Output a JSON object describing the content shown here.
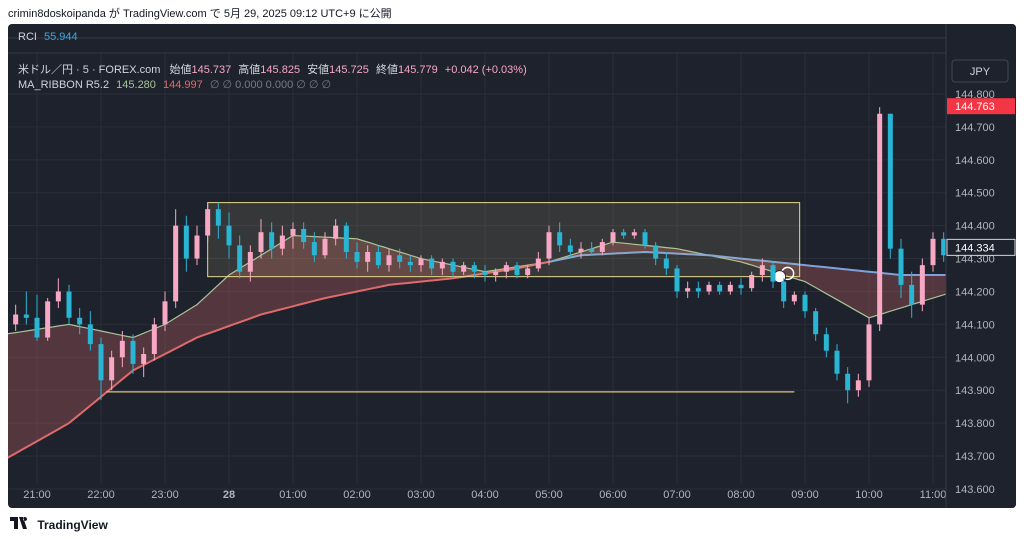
{
  "header": {
    "text": "crimin8doskoipanda が TradingView.com で 5月 29, 2025 09:12 UTC+9 に公開"
  },
  "footer": {
    "brand": "TradingView",
    "logo": "tradingview-logo"
  },
  "chart": {
    "rci_label": "RCI",
    "rci_value": "55.944",
    "symbol": "米ドル／円 · 5 · FOREX.com",
    "open_label": "始値",
    "open_value": "145.737",
    "high_label": "高値",
    "high_value": "145.825",
    "low_label": "安値",
    "low_value": "145.725",
    "close_label": "終値",
    "close_value": "145.779",
    "change": "+0.042 (+0.03%)",
    "ribbon_label": "MA_RIBBON R5.2",
    "ribbon_v1": "145.280",
    "ribbon_v2": "144.997",
    "ribbon_rest": "∅ ∅ 0.000 0.000 ∅ ∅ ∅",
    "currency": "JPY",
    "last_price": "144.763",
    "cursor_price": "144.334"
  },
  "colors": {
    "background": "#1e222d",
    "up": "#f7a8c4",
    "down": "#29b6d4",
    "rci": "#3ea6e0",
    "fast_ma": "#a7c497",
    "slow_ma": "#e06a6a",
    "ribbon_blue": "#7fa0d8",
    "box_border": "#e8d98b",
    "hline": "#e0c07a",
    "last_price_bg": "#f23645"
  },
  "chart_data": {
    "type": "candlestick",
    "y_ticks": [
      "144.800",
      "144.700",
      "144.600",
      "144.500",
      "144.400",
      "144.300",
      "144.200",
      "144.100",
      "144.000",
      "143.900",
      "143.800",
      "143.700",
      "143.600"
    ],
    "x_ticks": [
      "21:00",
      "22:00",
      "23:00",
      "28",
      "01:00",
      "02:00",
      "03:00",
      "04:00",
      "05:00",
      "06:00",
      "07:00",
      "08:00",
      "09:00",
      "10:00",
      "11:00"
    ],
    "ylim": [
      143.6,
      144.8
    ],
    "annotations": {
      "box": {
        "start": "23:40",
        "end": "08:55",
        "top": 144.47,
        "bottom": 144.245
      },
      "hline": {
        "start": "22:05",
        "end": "08:50",
        "price": 143.895
      }
    },
    "fast_ma": [
      {
        "t": "20:30",
        "p": 144.07
      },
      {
        "t": "21:30",
        "p": 144.1
      },
      {
        "t": "22:30",
        "p": 144.06
      },
      {
        "t": "23:00",
        "p": 144.1
      },
      {
        "t": "23:30",
        "p": 144.16
      },
      {
        "t": "00:00",
        "p": 144.25
      },
      {
        "t": "01:00",
        "p": 144.37
      },
      {
        "t": "02:00",
        "p": 144.36
      },
      {
        "t": "03:00",
        "p": 144.3
      },
      {
        "t": "04:00",
        "p": 144.26
      },
      {
        "t": "05:00",
        "p": 144.29
      },
      {
        "t": "06:00",
        "p": 144.35
      },
      {
        "t": "07:00",
        "p": 144.33
      },
      {
        "t": "08:00",
        "p": 144.29
      },
      {
        "t": "09:00",
        "p": 144.23
      },
      {
        "t": "10:00",
        "p": 144.12
      },
      {
        "t": "11:00",
        "p": 144.18
      },
      {
        "t": "11:20",
        "p": 144.2
      }
    ],
    "slow_ma": [
      {
        "t": "20:30",
        "p": 143.69
      },
      {
        "t": "21:30",
        "p": 143.8
      },
      {
        "t": "22:30",
        "p": 143.96
      },
      {
        "t": "23:30",
        "p": 144.06
      },
      {
        "t": "00:30",
        "p": 144.13
      },
      {
        "t": "01:30",
        "p": 144.18
      },
      {
        "t": "02:30",
        "p": 144.22
      },
      {
        "t": "03:30",
        "p": 144.24
      },
      {
        "t": "04:30",
        "p": 144.27
      },
      {
        "t": "05:30",
        "p": 144.31
      },
      {
        "t": "06:30",
        "p": 144.32
      },
      {
        "t": "07:30",
        "p": 144.31
      },
      {
        "t": "08:30",
        "p": 144.29
      },
      {
        "t": "09:30",
        "p": 144.27
      },
      {
        "t": "10:30",
        "p": 144.25
      },
      {
        "t": "11:20",
        "p": 144.25
      }
    ],
    "candles": [
      {
        "t": "20:30",
        "o": 144.07,
        "h": 144.12,
        "l": 144.04,
        "c": 144.1
      },
      {
        "t": "20:40",
        "o": 144.1,
        "h": 144.16,
        "l": 144.08,
        "c": 144.13
      },
      {
        "t": "20:50",
        "o": 144.13,
        "h": 144.2,
        "l": 144.1,
        "c": 144.12
      },
      {
        "t": "21:00",
        "o": 144.12,
        "h": 144.19,
        "l": 144.05,
        "c": 144.06
      },
      {
        "t": "21:10",
        "o": 144.06,
        "h": 144.18,
        "l": 144.05,
        "c": 144.17
      },
      {
        "t": "21:20",
        "o": 144.17,
        "h": 144.24,
        "l": 144.15,
        "c": 144.2
      },
      {
        "t": "21:30",
        "o": 144.2,
        "h": 144.22,
        "l": 144.1,
        "c": 144.12
      },
      {
        "t": "21:40",
        "o": 144.12,
        "h": 144.15,
        "l": 144.07,
        "c": 144.1
      },
      {
        "t": "21:50",
        "o": 144.1,
        "h": 144.14,
        "l": 144.02,
        "c": 144.04
      },
      {
        "t": "22:00",
        "o": 144.04,
        "h": 144.06,
        "l": 143.87,
        "c": 143.93
      },
      {
        "t": "22:10",
        "o": 143.93,
        "h": 144.02,
        "l": 143.9,
        "c": 144.0
      },
      {
        "t": "22:20",
        "o": 144.0,
        "h": 144.08,
        "l": 143.97,
        "c": 144.05
      },
      {
        "t": "22:30",
        "o": 144.05,
        "h": 144.07,
        "l": 143.95,
        "c": 143.98
      },
      {
        "t": "22:40",
        "o": 143.98,
        "h": 144.03,
        "l": 143.94,
        "c": 144.01
      },
      {
        "t": "22:50",
        "o": 144.01,
        "h": 144.12,
        "l": 143.99,
        "c": 144.1
      },
      {
        "t": "23:00",
        "o": 144.1,
        "h": 144.2,
        "l": 144.08,
        "c": 144.17
      },
      {
        "t": "23:10",
        "o": 144.17,
        "h": 144.45,
        "l": 144.15,
        "c": 144.4
      },
      {
        "t": "23:20",
        "o": 144.4,
        "h": 144.43,
        "l": 144.26,
        "c": 144.3
      },
      {
        "t": "23:30",
        "o": 144.3,
        "h": 144.4,
        "l": 144.28,
        "c": 144.37
      },
      {
        "t": "23:40",
        "o": 144.37,
        "h": 144.47,
        "l": 144.35,
        "c": 144.45
      },
      {
        "t": "23:50",
        "o": 144.45,
        "h": 144.47,
        "l": 144.36,
        "c": 144.4
      },
      {
        "t": "00:00",
        "o": 144.4,
        "h": 144.44,
        "l": 144.3,
        "c": 144.34
      },
      {
        "t": "00:10",
        "o": 144.34,
        "h": 144.37,
        "l": 144.24,
        "c": 144.26
      },
      {
        "t": "00:20",
        "o": 144.26,
        "h": 144.34,
        "l": 144.23,
        "c": 144.32
      },
      {
        "t": "00:30",
        "o": 144.32,
        "h": 144.42,
        "l": 144.3,
        "c": 144.38
      },
      {
        "t": "00:40",
        "o": 144.38,
        "h": 144.41,
        "l": 144.3,
        "c": 144.33
      },
      {
        "t": "00:50",
        "o": 144.33,
        "h": 144.4,
        "l": 144.31,
        "c": 144.37
      },
      {
        "t": "01:00",
        "o": 144.37,
        "h": 144.41,
        "l": 144.33,
        "c": 144.39
      },
      {
        "t": "01:10",
        "o": 144.39,
        "h": 144.41,
        "l": 144.33,
        "c": 144.35
      },
      {
        "t": "01:20",
        "o": 144.35,
        "h": 144.38,
        "l": 144.29,
        "c": 144.31
      },
      {
        "t": "01:30",
        "o": 144.31,
        "h": 144.38,
        "l": 144.3,
        "c": 144.36
      },
      {
        "t": "01:40",
        "o": 144.36,
        "h": 144.42,
        "l": 144.34,
        "c": 144.4
      },
      {
        "t": "01:50",
        "o": 144.4,
        "h": 144.41,
        "l": 144.3,
        "c": 144.32
      },
      {
        "t": "02:00",
        "o": 144.32,
        "h": 144.35,
        "l": 144.27,
        "c": 144.29
      },
      {
        "t": "02:10",
        "o": 144.29,
        "h": 144.34,
        "l": 144.26,
        "c": 144.32
      },
      {
        "t": "02:20",
        "o": 144.32,
        "h": 144.34,
        "l": 144.27,
        "c": 144.28
      },
      {
        "t": "02:30",
        "o": 144.28,
        "h": 144.33,
        "l": 144.26,
        "c": 144.31
      },
      {
        "t": "02:40",
        "o": 144.31,
        "h": 144.33,
        "l": 144.27,
        "c": 144.29
      },
      {
        "t": "02:50",
        "o": 144.29,
        "h": 144.31,
        "l": 144.26,
        "c": 144.28
      },
      {
        "t": "03:00",
        "o": 144.28,
        "h": 144.31,
        "l": 144.26,
        "c": 144.3
      },
      {
        "t": "03:10",
        "o": 144.3,
        "h": 144.31,
        "l": 144.25,
        "c": 144.27
      },
      {
        "t": "03:20",
        "o": 144.27,
        "h": 144.3,
        "l": 144.25,
        "c": 144.29
      },
      {
        "t": "03:30",
        "o": 144.29,
        "h": 144.3,
        "l": 144.24,
        "c": 144.26
      },
      {
        "t": "03:40",
        "o": 144.26,
        "h": 144.29,
        "l": 144.25,
        "c": 144.28
      },
      {
        "t": "03:50",
        "o": 144.28,
        "h": 144.29,
        "l": 144.24,
        "c": 144.26
      },
      {
        "t": "04:00",
        "o": 144.26,
        "h": 144.28,
        "l": 144.23,
        "c": 144.25
      },
      {
        "t": "04:10",
        "o": 144.25,
        "h": 144.27,
        "l": 144.23,
        "c": 144.26
      },
      {
        "t": "04:20",
        "o": 144.26,
        "h": 144.29,
        "l": 144.24,
        "c": 144.28
      },
      {
        "t": "04:30",
        "o": 144.28,
        "h": 144.29,
        "l": 144.24,
        "c": 144.25
      },
      {
        "t": "04:40",
        "o": 144.25,
        "h": 144.28,
        "l": 144.24,
        "c": 144.27
      },
      {
        "t": "04:50",
        "o": 144.27,
        "h": 144.32,
        "l": 144.26,
        "c": 144.3
      },
      {
        "t": "05:00",
        "o": 144.3,
        "h": 144.4,
        "l": 144.28,
        "c": 144.38
      },
      {
        "t": "05:10",
        "o": 144.38,
        "h": 144.41,
        "l": 144.32,
        "c": 144.34
      },
      {
        "t": "05:20",
        "o": 144.34,
        "h": 144.36,
        "l": 144.3,
        "c": 144.32
      },
      {
        "t": "05:30",
        "o": 144.32,
        "h": 144.35,
        "l": 144.3,
        "c": 144.33
      },
      {
        "t": "05:40",
        "o": 144.33,
        "h": 144.35,
        "l": 144.31,
        "c": 144.32
      },
      {
        "t": "05:50",
        "o": 144.32,
        "h": 144.36,
        "l": 144.31,
        "c": 144.35
      },
      {
        "t": "06:00",
        "o": 144.35,
        "h": 144.39,
        "l": 144.34,
        "c": 144.38
      },
      {
        "t": "06:10",
        "o": 144.38,
        "h": 144.39,
        "l": 144.36,
        "c": 144.37
      },
      {
        "t": "06:20",
        "o": 144.37,
        "h": 144.39,
        "l": 144.36,
        "c": 144.38
      },
      {
        "t": "06:30",
        "o": 144.38,
        "h": 144.39,
        "l": 144.33,
        "c": 144.34
      },
      {
        "t": "06:40",
        "o": 144.34,
        "h": 144.35,
        "l": 144.28,
        "c": 144.3
      },
      {
        "t": "06:50",
        "o": 144.3,
        "h": 144.32,
        "l": 144.25,
        "c": 144.27
      },
      {
        "t": "07:00",
        "o": 144.27,
        "h": 144.28,
        "l": 144.18,
        "c": 144.2
      },
      {
        "t": "07:10",
        "o": 144.2,
        "h": 144.23,
        "l": 144.18,
        "c": 144.21
      },
      {
        "t": "07:20",
        "o": 144.21,
        "h": 144.23,
        "l": 144.18,
        "c": 144.2
      },
      {
        "t": "07:30",
        "o": 144.2,
        "h": 144.23,
        "l": 144.19,
        "c": 144.22
      },
      {
        "t": "07:40",
        "o": 144.22,
        "h": 144.23,
        "l": 144.19,
        "c": 144.2
      },
      {
        "t": "07:50",
        "o": 144.2,
        "h": 144.23,
        "l": 144.19,
        "c": 144.22
      },
      {
        "t": "08:00",
        "o": 144.22,
        "h": 144.24,
        "l": 144.19,
        "c": 144.21
      },
      {
        "t": "08:10",
        "o": 144.21,
        "h": 144.26,
        "l": 144.2,
        "c": 144.25
      },
      {
        "t": "08:20",
        "o": 144.25,
        "h": 144.3,
        "l": 144.23,
        "c": 144.28
      },
      {
        "t": "08:30",
        "o": 144.28,
        "h": 144.29,
        "l": 144.21,
        "c": 144.23
      },
      {
        "t": "08:40",
        "o": 144.23,
        "h": 144.24,
        "l": 144.15,
        "c": 144.17
      },
      {
        "t": "08:50",
        "o": 144.17,
        "h": 144.2,
        "l": 144.16,
        "c": 144.19
      },
      {
        "t": "09:00",
        "o": 144.19,
        "h": 144.2,
        "l": 144.12,
        "c": 144.14
      },
      {
        "t": "09:10",
        "o": 144.14,
        "h": 144.15,
        "l": 144.05,
        "c": 144.07
      },
      {
        "t": "09:20",
        "o": 144.07,
        "h": 144.09,
        "l": 144.0,
        "c": 144.02
      },
      {
        "t": "09:30",
        "o": 144.02,
        "h": 144.04,
        "l": 143.93,
        "c": 143.95
      },
      {
        "t": "09:40",
        "o": 143.95,
        "h": 143.97,
        "l": 143.86,
        "c": 143.9
      },
      {
        "t": "09:50",
        "o": 143.9,
        "h": 143.95,
        "l": 143.88,
        "c": 143.93
      },
      {
        "t": "10:00",
        "o": 143.93,
        "h": 144.12,
        "l": 143.91,
        "c": 144.1
      },
      {
        "t": "10:10",
        "o": 144.1,
        "h": 144.76,
        "l": 144.08,
        "c": 144.74
      },
      {
        "t": "10:20",
        "o": 144.74,
        "h": 144.74,
        "l": 144.3,
        "c": 144.33
      },
      {
        "t": "10:30",
        "o": 144.33,
        "h": 144.36,
        "l": 144.18,
        "c": 144.22
      },
      {
        "t": "10:40",
        "o": 144.22,
        "h": 144.26,
        "l": 144.12,
        "c": 144.16
      },
      {
        "t": "10:50",
        "o": 144.16,
        "h": 144.3,
        "l": 144.14,
        "c": 144.28
      },
      {
        "t": "11:00",
        "o": 144.28,
        "h": 144.38,
        "l": 144.26,
        "c": 144.36
      },
      {
        "t": "11:10",
        "o": 144.36,
        "h": 144.38,
        "l": 144.29,
        "c": 144.31
      },
      {
        "t": "11:20",
        "o": 144.31,
        "h": 144.35,
        "l": 144.27,
        "c": 144.33
      }
    ]
  }
}
